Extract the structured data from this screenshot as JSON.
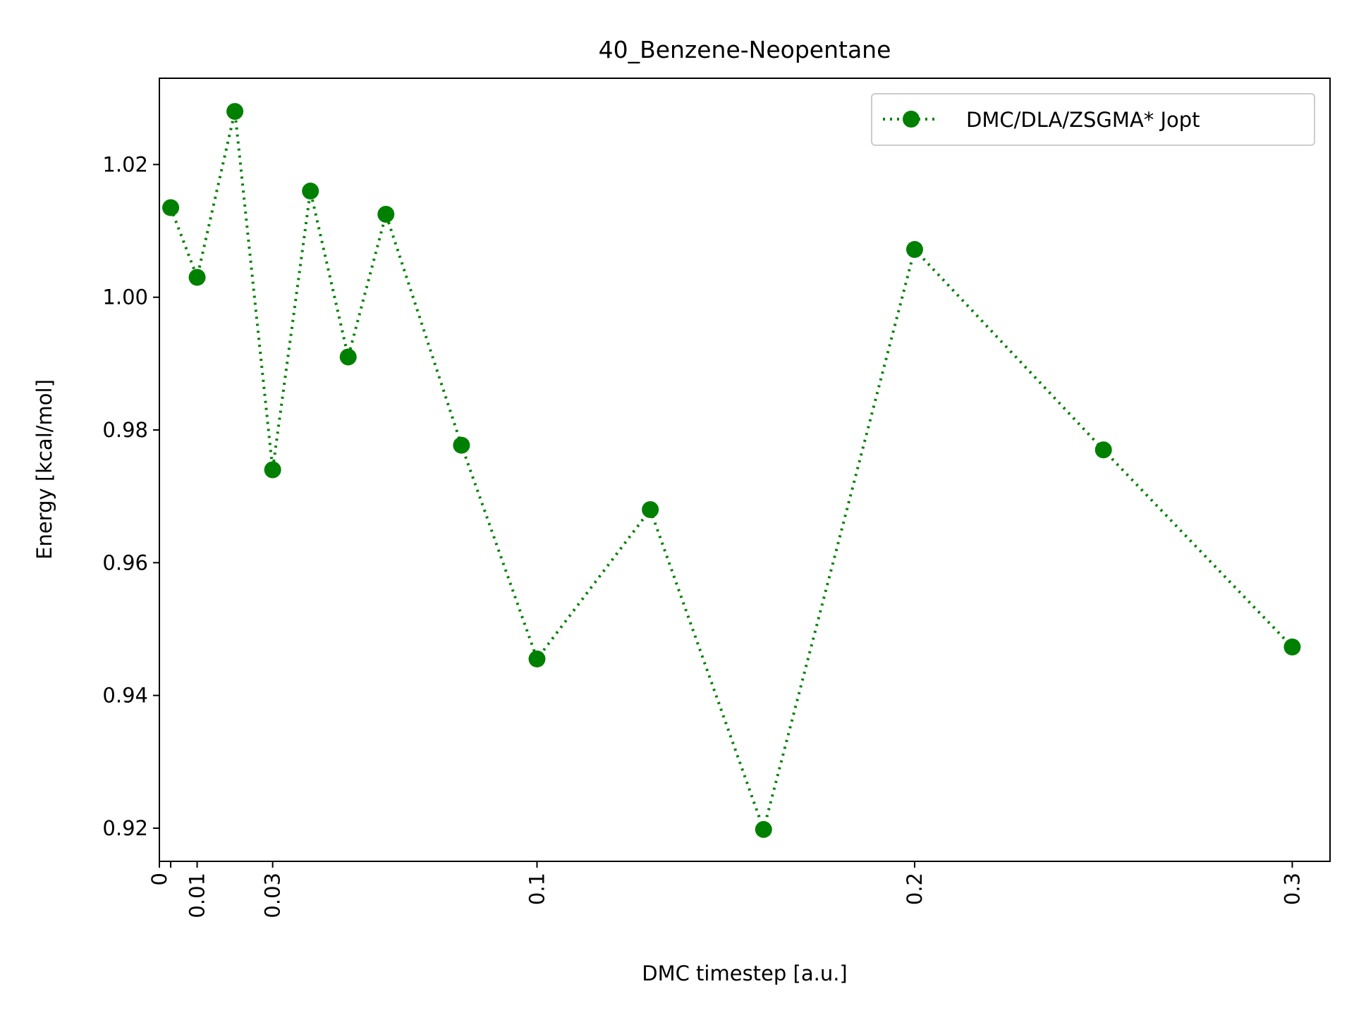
{
  "chart_data": {
    "type": "line",
    "title": "40_Benzene-Neopentane",
    "xlabel": "DMC timestep [a.u.]",
    "ylabel": "Energy [kcal/mol]",
    "xlim": [
      0,
      0.31
    ],
    "ylim": [
      0.915,
      1.033
    ],
    "xticks": [
      0,
      0.003,
      0.01,
      0.03,
      0.1,
      0.2,
      0.3
    ],
    "xtick_labels": [
      "0",
      "",
      "0.01",
      "0.03",
      "0.1",
      "0.2",
      "0.3"
    ],
    "yticks": [
      0.92,
      0.94,
      0.96,
      0.98,
      1.0,
      1.02
    ],
    "ytick_labels": [
      "0.92",
      "0.94",
      "0.96",
      "0.98",
      "1.00",
      "1.02"
    ],
    "grid": false,
    "legend_position": "top-right",
    "series": [
      {
        "name": "DMC/DLA/ZSGMA* Jopt",
        "color": "#008000",
        "line_style": "dotted",
        "marker": "circle",
        "x": [
          0.003,
          0.01,
          0.02,
          0.03,
          0.04,
          0.05,
          0.06,
          0.08,
          0.1,
          0.13,
          0.16,
          0.2,
          0.25,
          0.3
        ],
        "y": [
          1.0135,
          1.003,
          1.028,
          0.974,
          1.016,
          0.991,
          1.0125,
          0.9777,
          0.9455,
          0.968,
          0.9198,
          1.0072,
          0.977,
          0.9473
        ]
      }
    ]
  }
}
